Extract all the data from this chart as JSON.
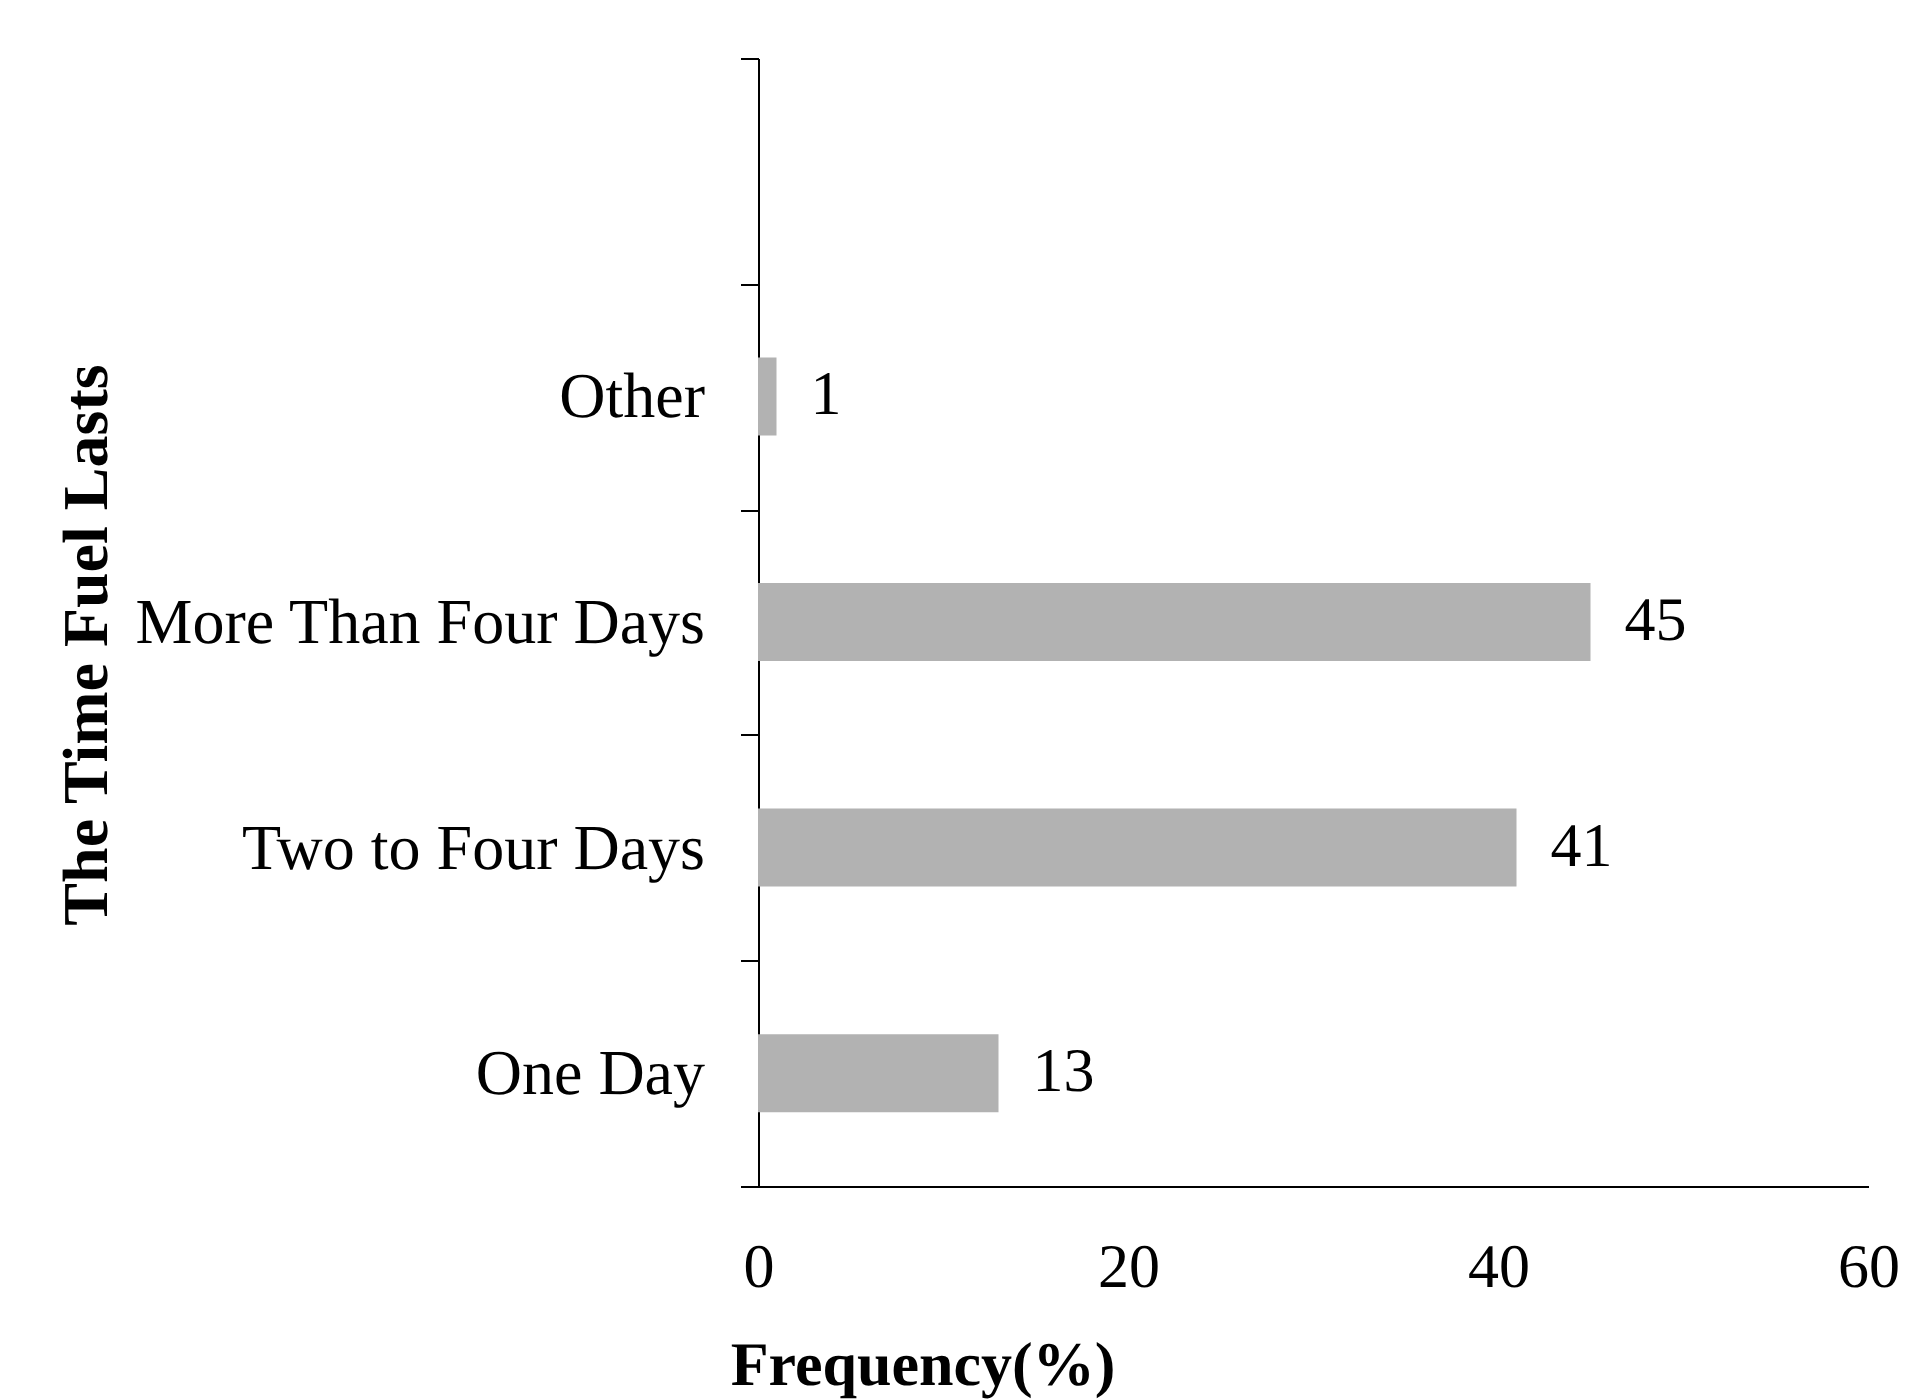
{
  "chart_data": {
    "type": "bar",
    "orientation": "horizontal",
    "xlabel": "Frequency(%)",
    "ylabel": "The Time Fuel Lasts",
    "categories": [
      null,
      "Other",
      "More Than Four Days",
      "Two to Four Days",
      "One Day"
    ],
    "values": [
      null,
      1,
      45,
      41,
      13
    ],
    "color": "#b2b2b2",
    "xlim": [
      0,
      60
    ],
    "xticks": [
      0,
      20,
      40,
      60
    ],
    "data_labels": true,
    "grid": false
  }
}
